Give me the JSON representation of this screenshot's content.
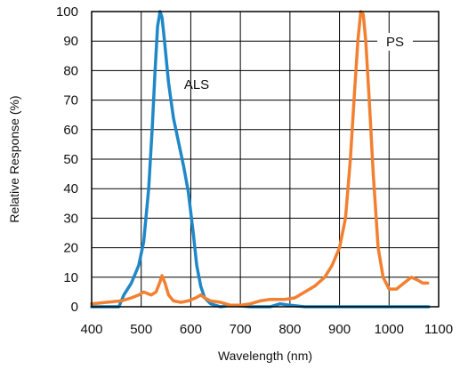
{
  "chart_data": {
    "type": "line",
    "xlabel": "Wavelength (nm)",
    "ylabel": "Relative Response (%)",
    "xlim": [
      400,
      1100
    ],
    "ylim": [
      0,
      100
    ],
    "x_ticks": [
      400,
      500,
      600,
      700,
      800,
      900,
      1000,
      1100
    ],
    "y_ticks": [
      0,
      10,
      20,
      30,
      40,
      50,
      60,
      70,
      80,
      90,
      100
    ],
    "grid": true,
    "series": [
      {
        "name": "ALS",
        "color": "#1f88c8",
        "points": [
          [
            400,
            0
          ],
          [
            455,
            0
          ],
          [
            465,
            4
          ],
          [
            480,
            8
          ],
          [
            495,
            14
          ],
          [
            505,
            22
          ],
          [
            515,
            40
          ],
          [
            522,
            60
          ],
          [
            528,
            80
          ],
          [
            533,
            95
          ],
          [
            538,
            100
          ],
          [
            542,
            98
          ],
          [
            547,
            90
          ],
          [
            555,
            76
          ],
          [
            565,
            64
          ],
          [
            575,
            56
          ],
          [
            585,
            48
          ],
          [
            595,
            39
          ],
          [
            605,
            25
          ],
          [
            612,
            14
          ],
          [
            620,
            7
          ],
          [
            628,
            3
          ],
          [
            640,
            1
          ],
          [
            660,
            0
          ],
          [
            680,
            0.5
          ],
          [
            700,
            0.3
          ],
          [
            720,
            0
          ],
          [
            760,
            0
          ],
          [
            780,
            1
          ],
          [
            800,
            0.5
          ],
          [
            830,
            0
          ],
          [
            1080,
            0
          ]
        ]
      },
      {
        "name": "PS",
        "color": "#f28030",
        "points": [
          [
            400,
            1
          ],
          [
            430,
            1.5
          ],
          [
            460,
            2
          ],
          [
            480,
            3
          ],
          [
            495,
            4
          ],
          [
            505,
            5
          ],
          [
            520,
            4
          ],
          [
            530,
            5
          ],
          [
            537,
            8
          ],
          [
            542,
            10.5
          ],
          [
            548,
            8
          ],
          [
            555,
            4
          ],
          [
            565,
            2
          ],
          [
            580,
            1.5
          ],
          [
            595,
            2
          ],
          [
            610,
            3
          ],
          [
            620,
            4
          ],
          [
            628,
            3
          ],
          [
            640,
            2
          ],
          [
            660,
            1.5
          ],
          [
            680,
            0.5
          ],
          [
            700,
            0.5
          ],
          [
            720,
            1
          ],
          [
            740,
            2
          ],
          [
            760,
            2.5
          ],
          [
            790,
            2.5
          ],
          [
            810,
            3
          ],
          [
            830,
            5
          ],
          [
            850,
            7
          ],
          [
            870,
            10
          ],
          [
            885,
            14
          ],
          [
            900,
            20
          ],
          [
            912,
            30
          ],
          [
            922,
            50
          ],
          [
            930,
            72
          ],
          [
            937,
            90
          ],
          [
            943,
            100
          ],
          [
            948,
            99
          ],
          [
            953,
            90
          ],
          [
            960,
            70
          ],
          [
            968,
            45
          ],
          [
            978,
            20
          ],
          [
            988,
            10
          ],
          [
            1000,
            6
          ],
          [
            1015,
            6
          ],
          [
            1030,
            8
          ],
          [
            1045,
            10
          ],
          [
            1058,
            9
          ],
          [
            1068,
            8
          ],
          [
            1078,
            8
          ]
        ]
      }
    ]
  }
}
